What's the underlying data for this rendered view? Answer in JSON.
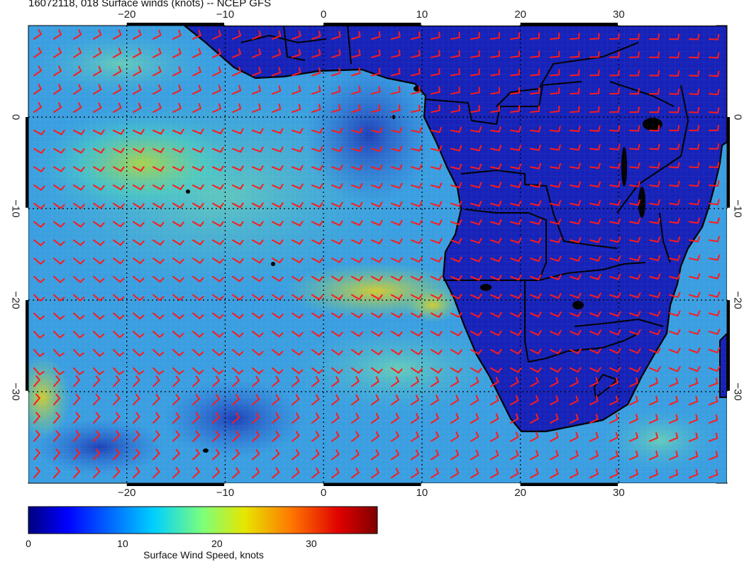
{
  "title": "16072118, 018 Surface winds (knots) -- NCEP GFS",
  "axes": {
    "lon_ticks": [
      -20,
      -10,
      0,
      10,
      20,
      30
    ],
    "lon_tick_labels": [
      "−20",
      "−10",
      "0",
      "10",
      "20",
      "30"
    ],
    "lat_ticks": [
      0,
      -10,
      -20,
      -30
    ],
    "lat_tick_labels": [
      "0",
      "−10",
      "−20",
      "−30"
    ],
    "lon_range": [
      -30,
      41
    ],
    "lat_range": [
      -40,
      10
    ],
    "graticule_style": "dotted"
  },
  "map": {
    "region": "South Atlantic and southern Africa",
    "land_color": "#1622b8",
    "coastline_color": "#000000",
    "wind_barb_color": "#ff1a1a"
  },
  "colorbar": {
    "min": 0,
    "max": 37,
    "ticks": [
      0,
      10,
      20,
      30
    ],
    "tick_labels": [
      "0",
      "10",
      "20",
      "30"
    ],
    "label": "Surface Wind Speed, knots",
    "colormap": "jet"
  }
}
